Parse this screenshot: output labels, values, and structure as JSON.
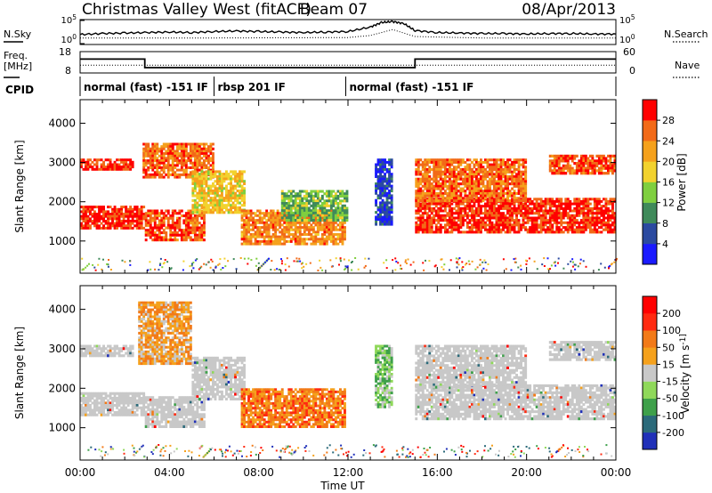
{
  "header": {
    "station": "Christmas Valley West (fitACF)",
    "beam": "Beam 07",
    "date": "08/Apr/2013"
  },
  "colors": {
    "power_scale": [
      "#1a1aff",
      "#2b4aa0",
      "#3f8a5a",
      "#7fcf3f",
      "#f2d22e",
      "#f5a11c",
      "#f26a18",
      "#ff0000"
    ],
    "velocity_scale": [
      "#2030b8",
      "#2b6a7a",
      "#3ea04a",
      "#8fd85a",
      "#c8c8c8",
      "#f5a11c",
      "#f27a18",
      "#ff2a10",
      "#ff0000"
    ],
    "grey_scatter": "#c8c8c8"
  },
  "chart_data": [
    {
      "type": "line",
      "panel": "noise",
      "left_label": "N.Sky",
      "right_label": "N.Search",
      "left_ticks": [
        "10^5",
        "10^0"
      ],
      "right_ticks": [
        "10^5",
        "10^0"
      ],
      "series": [
        {
          "name": "N.Sky",
          "style": "solid",
          "x": [
            0,
            1,
            2,
            3,
            4,
            5,
            6,
            7,
            8,
            9,
            10,
            11,
            12,
            13,
            13.5,
            14,
            14.5,
            15,
            16,
            17,
            18,
            19,
            20,
            21,
            22,
            23,
            24
          ],
          "y": [
            2.0,
            2.2,
            2.3,
            2.4,
            2.5,
            2.4,
            2.6,
            2.7,
            2.6,
            2.5,
            2.4,
            2.5,
            2.6,
            3.5,
            4.4,
            4.6,
            4.2,
            2.8,
            2.4,
            2.3,
            2.2,
            2.2,
            2.1,
            2.2,
            2.2,
            2.1,
            2.1
          ]
        },
        {
          "name": "N.Search",
          "style": "dotted",
          "x": [
            0,
            6,
            12,
            13,
            14,
            15,
            18,
            24
          ],
          "y": [
            1.3,
            1.3,
            1.4,
            1.8,
            3.0,
            1.6,
            1.3,
            1.3
          ]
        }
      ]
    },
    {
      "type": "line",
      "panel": "frequency",
      "left_label": "Freq. [MHz]",
      "right_label": "Nave",
      "left_ticks": [
        "18",
        "8"
      ],
      "right_ticks": [
        "60",
        "0"
      ],
      "series": [
        {
          "name": "Freq.",
          "style": "solid",
          "x": [
            0,
            2.9,
            2.9,
            15.0,
            15.0,
            24
          ],
          "y": [
            14.5,
            14.5,
            10.5,
            10.5,
            14.5,
            14.5
          ]
        },
        {
          "name": "Nave",
          "style": "dotted",
          "x": [
            0,
            24
          ],
          "y": [
            22,
            22
          ]
        }
      ]
    },
    {
      "type": "table",
      "panel": "cpid",
      "label": "CPID",
      "segments": [
        {
          "start": 0,
          "end": 6.0,
          "text": "normal (fast) -151 IF"
        },
        {
          "start": 6.0,
          "end": 11.9,
          "text": "rbsp 201 IF"
        },
        {
          "start": 11.9,
          "end": 24,
          "text": "normal (fast) -151 IF"
        }
      ]
    },
    {
      "type": "heatmap",
      "panel": "power",
      "ylabel": "Slant Range [km]",
      "yticks": [
        1000,
        2000,
        3000,
        4000
      ],
      "ylim": [
        180,
        4600
      ],
      "colorbar_label": "Power [dB]",
      "colorbar_ticks": [
        4,
        8,
        12,
        16,
        20,
        24,
        28
      ],
      "colorbar_range": [
        0,
        32
      ],
      "regions": [
        {
          "x": [
            0,
            2.9
          ],
          "y": [
            1300,
            1900
          ],
          "level": 0.92
        },
        {
          "x": [
            0,
            2.4
          ],
          "y": [
            2800,
            3100
          ],
          "level": 0.9
        },
        {
          "x": [
            2.9,
            5.6
          ],
          "y": [
            1000,
            1800
          ],
          "level": 0.85
        },
        {
          "x": [
            2.8,
            6.0
          ],
          "y": [
            2600,
            3500
          ],
          "level": 0.8
        },
        {
          "x": [
            5.0,
            7.4
          ],
          "y": [
            1700,
            2800
          ],
          "level": 0.6
        },
        {
          "x": [
            7.2,
            11.9
          ],
          "y": [
            900,
            1800
          ],
          "level": 0.75
        },
        {
          "x": [
            9.0,
            12.0
          ],
          "y": [
            1500,
            2300
          ],
          "level": 0.4
        },
        {
          "x": [
            13.2,
            14.0
          ],
          "y": [
            1400,
            3100
          ],
          "level": 0.15
        },
        {
          "x": [
            15.0,
            24.0
          ],
          "y": [
            1200,
            2100
          ],
          "level": 0.9
        },
        {
          "x": [
            15.0,
            20.0
          ],
          "y": [
            2000,
            3100
          ],
          "level": 0.8
        },
        {
          "x": [
            21.0,
            24.0
          ],
          "y": [
            2700,
            3200
          ],
          "level": 0.85
        }
      ]
    },
    {
      "type": "heatmap",
      "panel": "velocity",
      "ylabel": "Slant Range [km]",
      "yticks": [
        1000,
        2000,
        3000,
        4000
      ],
      "ylim": [
        180,
        4600
      ],
      "xlabel": "Time UT",
      "xticks": [
        "00:00",
        "04:00",
        "08:00",
        "12:00",
        "16:00",
        "20:00",
        "00:00"
      ],
      "xlim": [
        0,
        24
      ],
      "colorbar_label": "Velocity [m s^-1]",
      "colorbar_ticks": [
        200,
        100,
        50,
        15,
        -15,
        -50,
        -100,
        -200
      ],
      "regions": [
        {
          "x": [
            0,
            2.9
          ],
          "y": [
            1300,
            1900
          ],
          "level": 0.5
        },
        {
          "x": [
            0,
            2.4
          ],
          "y": [
            2800,
            3100
          ],
          "level": 0.5
        },
        {
          "x": [
            2.9,
            5.6
          ],
          "y": [
            1000,
            1800
          ],
          "level": 0.5
        },
        {
          "x": [
            2.6,
            5.0
          ],
          "y": [
            2600,
            4200
          ],
          "level": 0.62
        },
        {
          "x": [
            5.0,
            7.4
          ],
          "y": [
            1700,
            2800
          ],
          "level": 0.5
        },
        {
          "x": [
            7.2,
            11.9
          ],
          "y": [
            1000,
            2000
          ],
          "level": 0.7
        },
        {
          "x": [
            13.2,
            14.0
          ],
          "y": [
            1500,
            3100
          ],
          "level": 0.38
        },
        {
          "x": [
            15.0,
            24.0
          ],
          "y": [
            1200,
            2100
          ],
          "level": 0.5
        },
        {
          "x": [
            15.0,
            20.0
          ],
          "y": [
            2000,
            3100
          ],
          "level": 0.5
        },
        {
          "x": [
            21.0,
            24.0
          ],
          "y": [
            2700,
            3200
          ],
          "level": 0.5
        }
      ]
    }
  ]
}
